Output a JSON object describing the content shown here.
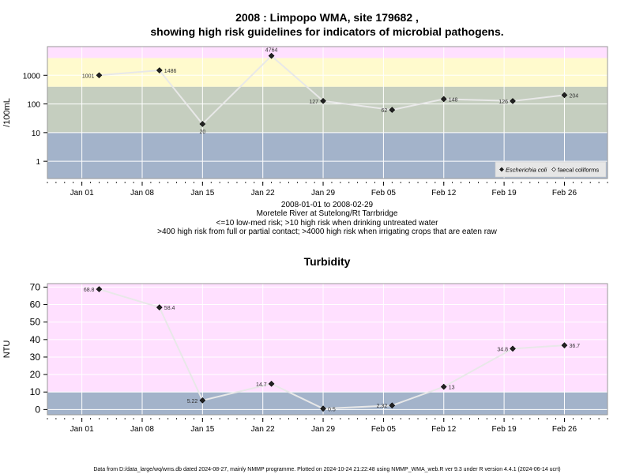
{
  "page": {
    "footer": "Data from D:/data_large/wq/wms.db dated 2024-08-27, mainly NMMP programme. Plotted on 2024-10-24 21:22:48 using NMMP_WMA_web.R ver 9.3 under R version 4.4.1 (2024-06-14 ucrt)"
  },
  "colors": {
    "band_pink": "#ffe0ff",
    "band_yellow": "#fffacd",
    "band_green": "#c5cebf",
    "band_blue": "#a3b3ca",
    "line": "#e8e8e8",
    "marker": "#222222"
  },
  "chart_data": [
    {
      "type": "line",
      "title_line1": "2008 : Limpopo WMA, site 179682 ,",
      "title_line2": "showing high risk guidelines for indicators of microbial pathogens.",
      "ylabel": "/100mL",
      "yscale": "log",
      "ylim": [
        0.25,
        10000
      ],
      "yticks": [
        1,
        10,
        100,
        1000
      ],
      "ytick_labels": [
        "1",
        "10",
        "100",
        "1000"
      ],
      "xlim": [
        "2007-12-28",
        "2008-03-02"
      ],
      "xticks": [
        "2008-01-01",
        "2008-01-08",
        "2008-01-15",
        "2008-01-22",
        "2008-01-29",
        "2008-02-05",
        "2008-02-12",
        "2008-02-19",
        "2008-02-26"
      ],
      "xtick_labels": [
        "Jan 01",
        "Jan 08",
        "Jan 15",
        "Jan 22",
        "Jan 29",
        "Feb 05",
        "Feb 12",
        "Feb 19",
        "Feb 26"
      ],
      "bands": [
        {
          "from": 0.25,
          "to": 10,
          "color": "#a3b3ca"
        },
        {
          "from": 10,
          "to": 400,
          "color": "#c5cebf"
        },
        {
          "from": 400,
          "to": 4000,
          "color": "#fffacd"
        },
        {
          "from": 4000,
          "to": 10000,
          "color": "#ffe0ff"
        }
      ],
      "grid": true,
      "series": [
        {
          "name": "Escherichia coli",
          "x": [
            "2008-01-03",
            "2008-01-10",
            "2008-01-15",
            "2008-01-23",
            "2008-01-29",
            "2008-02-06",
            "2008-02-12",
            "2008-02-20",
            "2008-02-26"
          ],
          "y": [
            1001,
            1486,
            20,
            4764,
            127,
            62,
            148,
            126,
            204
          ],
          "labels": [
            "1001",
            "1486",
            "20",
            "4764",
            "127",
            "62",
            "148",
            "126",
            "204"
          ]
        }
      ],
      "legend": {
        "position": "bottom-right",
        "items": [
          {
            "label": "Escherichia coli",
            "marker": "filled-diamond"
          },
          {
            "label": "faecal coliforms",
            "marker": "open-diamond"
          }
        ]
      },
      "notes": [
        "2008-01-01 to 2008-02-29",
        "Moretele River at Sutelong/Rt Tarrbridge",
        "<=10 low-med risk; >10 high risk when drinking untreated water",
        ">400 high risk from full or partial contact; >4000 high risk when irrigating crops that are eaten raw"
      ]
    },
    {
      "type": "line",
      "title": "Turbidity",
      "ylabel": "NTU",
      "yscale": "linear",
      "ylim": [
        -3,
        72
      ],
      "yticks": [
        0,
        10,
        20,
        30,
        40,
        50,
        60,
        70
      ],
      "ytick_labels": [
        "0",
        "10",
        "20",
        "30",
        "40",
        "50",
        "60",
        "70"
      ],
      "xlim": [
        "2007-12-28",
        "2008-03-02"
      ],
      "xticks": [
        "2008-01-01",
        "2008-01-08",
        "2008-01-15",
        "2008-01-22",
        "2008-01-29",
        "2008-02-05",
        "2008-02-12",
        "2008-02-19",
        "2008-02-26"
      ],
      "xtick_labels": [
        "Jan 01",
        "Jan 08",
        "Jan 15",
        "Jan 22",
        "Jan 29",
        "Feb 05",
        "Feb 12",
        "Feb 19",
        "Feb 26"
      ],
      "bands": [
        {
          "from": -3,
          "to": 10,
          "color": "#a3b3ca"
        },
        {
          "from": 10,
          "to": 72,
          "color": "#ffe0ff"
        }
      ],
      "grid": true,
      "series": [
        {
          "x": [
            "2008-01-03",
            "2008-01-10",
            "2008-01-15",
            "2008-01-23",
            "2008-01-29",
            "2008-02-06",
            "2008-02-12",
            "2008-02-20",
            "2008-02-26"
          ],
          "y": [
            68.8,
            58.4,
            5.22,
            14.7,
            0.5,
            2.32,
            13,
            34.8,
            36.7
          ],
          "labels": [
            "68.8",
            "58.4",
            "5.22",
            "14.7",
            "0.5",
            "2.32",
            "13",
            "34.8",
            "36.7"
          ]
        }
      ]
    }
  ]
}
